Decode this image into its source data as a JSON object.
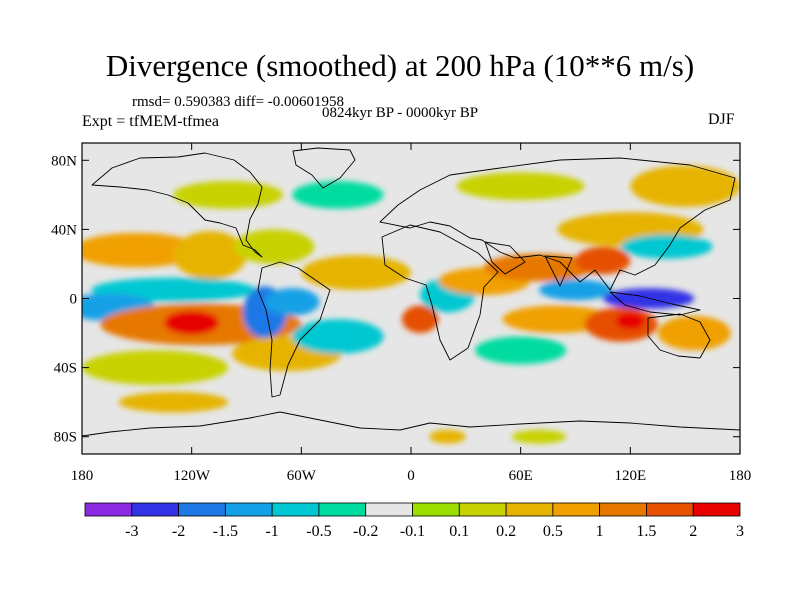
{
  "title": "Divergence (smoothed) at 200 hPa (10**6 m/s)",
  "stats_text": "rmsd= 0.590383 diff= -0.00601958",
  "period_text": "0824kyr BP - 0000kyr BP",
  "expt_text": "Expt = tfMEM-tfmea",
  "season_text": "DJF",
  "map": {
    "projection": "cylindrical equidistant",
    "lon_range": [
      -180,
      180
    ],
    "lat_range": [
      -90,
      90
    ],
    "lat_tick_labels": [
      {
        "lat": 80,
        "label": "80N"
      },
      {
        "lat": 40,
        "label": "40N"
      },
      {
        "lat": 0,
        "label": "0"
      },
      {
        "lat": -40,
        "label": "40S"
      },
      {
        "lat": -80,
        "label": "80S"
      }
    ],
    "lon_tick_labels": [
      {
        "lon": -180,
        "label": "180"
      },
      {
        "lon": -120,
        "label": "120W"
      },
      {
        "lon": -60,
        "label": "60W"
      },
      {
        "lon": 0,
        "label": "0"
      },
      {
        "lon": 60,
        "label": "60E"
      },
      {
        "lon": 120,
        "label": "120E"
      },
      {
        "lon": 180,
        "label": "180"
      }
    ],
    "background_color": "#e6e6e6",
    "features": [
      {
        "lon": -150,
        "lat": 28,
        "rlon": 35,
        "rlat": 10,
        "value": 1.0
      },
      {
        "lon": -110,
        "lat": 25,
        "rlon": 20,
        "rlat": 14,
        "value": 0.5
      },
      {
        "lon": -75,
        "lat": 30,
        "rlon": 22,
        "rlat": 10,
        "value": 0.2
      },
      {
        "lon": -130,
        "lat": 5,
        "rlon": 45,
        "rlat": 7,
        "value": -0.5
      },
      {
        "lon": -165,
        "lat": -5,
        "rlon": 25,
        "rlat": 8,
        "value": -1.0
      },
      {
        "lon": -115,
        "lat": -15,
        "rlon": 55,
        "rlat": 12,
        "value": 1.5
      },
      {
        "lon": -120,
        "lat": -14,
        "rlon": 15,
        "rlat": 7,
        "value": 3.0
      },
      {
        "lon": -80,
        "lat": -8,
        "rlon": 12,
        "rlat": 15,
        "value": -1.5
      },
      {
        "lon": -65,
        "lat": -2,
        "rlon": 15,
        "rlat": 8,
        "value": -1.0
      },
      {
        "lon": -68,
        "lat": -32,
        "rlon": 30,
        "rlat": 10,
        "value": 0.5
      },
      {
        "lon": -140,
        "lat": -40,
        "rlon": 40,
        "rlat": 10,
        "value": 0.2
      },
      {
        "lon": -40,
        "lat": -22,
        "rlon": 25,
        "rlat": 10,
        "value": -0.5
      },
      {
        "lon": -30,
        "lat": 15,
        "rlon": 30,
        "rlat": 10,
        "value": 0.5
      },
      {
        "lon": 5,
        "lat": -12,
        "rlon": 10,
        "rlat": 8,
        "value": 2.0
      },
      {
        "lon": 20,
        "lat": 2,
        "rlon": 15,
        "rlat": 10,
        "value": -0.5
      },
      {
        "lon": 40,
        "lat": 10,
        "rlon": 25,
        "rlat": 8,
        "value": 1.0
      },
      {
        "lon": 70,
        "lat": 18,
        "rlon": 30,
        "rlat": 8,
        "value": 1.5
      },
      {
        "lon": 105,
        "lat": 22,
        "rlon": 15,
        "rlat": 8,
        "value": 2.0
      },
      {
        "lon": 90,
        "lat": 5,
        "rlon": 20,
        "rlat": 6,
        "value": -1.0
      },
      {
        "lon": 130,
        "lat": 0,
        "rlon": 25,
        "rlat": 6,
        "value": -2.0
      },
      {
        "lon": 80,
        "lat": -12,
        "rlon": 30,
        "rlat": 8,
        "value": 1.0
      },
      {
        "lon": 115,
        "lat": -15,
        "rlon": 20,
        "rlat": 10,
        "value": 2.0
      },
      {
        "lon": 120,
        "lat": -13,
        "rlon": 8,
        "rlat": 5,
        "value": 3.0
      },
      {
        "lon": 155,
        "lat": -20,
        "rlon": 20,
        "rlat": 10,
        "value": 1.0
      },
      {
        "lon": 60,
        "lat": -30,
        "rlon": 25,
        "rlat": 8,
        "value": -0.2
      },
      {
        "lon": 120,
        "lat": 40,
        "rlon": 40,
        "rlat": 10,
        "value": 0.5
      },
      {
        "lon": 140,
        "lat": 30,
        "rlon": 25,
        "rlat": 7,
        "value": -0.5
      },
      {
        "lon": 150,
        "lat": 65,
        "rlon": 30,
        "rlat": 12,
        "value": 0.5
      },
      {
        "lon": -100,
        "lat": 60,
        "rlon": 30,
        "rlat": 8,
        "value": 0.2
      },
      {
        "lon": -40,
        "lat": 60,
        "rlon": 25,
        "rlat": 8,
        "value": -0.2
      },
      {
        "lon": 60,
        "lat": 65,
        "rlon": 35,
        "rlat": 8,
        "value": 0.2
      },
      {
        "lon": -130,
        "lat": -60,
        "rlon": 30,
        "rlat": 6,
        "value": 0.5
      },
      {
        "lon": 20,
        "lat": -80,
        "rlon": 10,
        "rlat": 4,
        "value": 0.5
      },
      {
        "lon": 70,
        "lat": -80,
        "rlon": 15,
        "rlat": 4,
        "value": 0.2
      }
    ]
  },
  "colorbar": {
    "colors": [
      "#8a2be2",
      "#3232e6",
      "#1e78e6",
      "#14a0e6",
      "#00c8d2",
      "#00dca0",
      "#e6e6e6",
      "#9adf00",
      "#c8d200",
      "#e6b400",
      "#f0a000",
      "#e67800",
      "#e65000",
      "#e60000"
    ],
    "labels": [
      "-3",
      "-2",
      "-1.5",
      "-1",
      "-0.5",
      "-0.2",
      "-0.1",
      "0.1",
      "0.2",
      "0.5",
      "1",
      "1.5",
      "2",
      "3"
    ],
    "thresholds": [
      -3,
      -2,
      -1.5,
      -1,
      -0.5,
      -0.2,
      -0.1,
      0.1,
      0.2,
      0.5,
      1,
      1.5,
      2,
      3
    ]
  }
}
